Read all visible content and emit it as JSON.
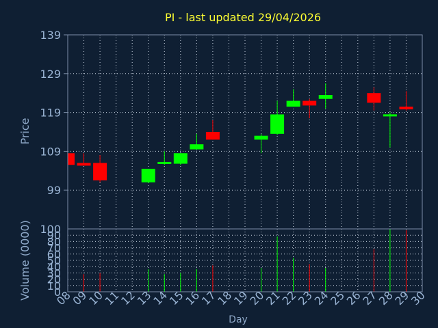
{
  "chart_data": {
    "type": "candlestick",
    "title": "PI - last updated 29/04/2026",
    "ylabel": "Price",
    "volume_ylabel": "Volume (0000)",
    "xlabel": "Day",
    "ylim": [
      89,
      139
    ],
    "price_ticks": [
      99,
      109,
      119,
      129,
      139
    ],
    "volume_ylim": [
      0,
      100
    ],
    "volume_ticks": [
      0,
      10,
      20,
      30,
      40,
      50,
      60,
      70,
      80,
      90,
      100
    ],
    "x_ticks": [
      "08",
      "09",
      "10",
      "11",
      "12",
      "13",
      "14",
      "15",
      "16",
      "17",
      "18",
      "19",
      "20",
      "21",
      "22",
      "23",
      "24",
      "25",
      "26",
      "27",
      "28",
      "29",
      "30"
    ],
    "grid": true,
    "candles": [
      {
        "day": 8,
        "open": 108.5,
        "high": 108.5,
        "low": 104.5,
        "close": 105.5
      },
      {
        "day": 9,
        "open": 106.0,
        "high": 108.5,
        "low": 105.3,
        "close": 105.3
      },
      {
        "day": 10,
        "open": 106.0,
        "high": 108.0,
        "low": 101.0,
        "close": 101.5
      },
      {
        "day": 13,
        "open": 101.0,
        "high": 104.5,
        "low": 100.8,
        "close": 104.5
      },
      {
        "day": 14,
        "open": 105.8,
        "high": 109.0,
        "low": 105.5,
        "close": 106.2
      },
      {
        "day": 15,
        "open": 105.8,
        "high": 108.5,
        "low": 105.5,
        "close": 108.5
      },
      {
        "day": 16,
        "open": 109.5,
        "high": 113.5,
        "low": 109.5,
        "close": 110.8
      },
      {
        "day": 17,
        "open": 114.0,
        "high": 117.0,
        "low": 112.0,
        "close": 112.0
      },
      {
        "day": 20,
        "open": 112.0,
        "high": 113.5,
        "low": 108.5,
        "close": 113.0
      },
      {
        "day": 21,
        "open": 113.5,
        "high": 122.0,
        "low": 113.2,
        "close": 118.5
      },
      {
        "day": 22,
        "open": 120.5,
        "high": 125.0,
        "low": 120.5,
        "close": 122.0
      },
      {
        "day": 23,
        "open": 122.0,
        "high": 122.5,
        "low": 117.5,
        "close": 120.8
      },
      {
        "day": 24,
        "open": 122.5,
        "high": 126.5,
        "low": 120.0,
        "close": 123.5
      },
      {
        "day": 27,
        "open": 124.0,
        "high": 125.5,
        "low": 119.5,
        "close": 121.5
      },
      {
        "day": 28,
        "open": 118.0,
        "high": 119.0,
        "low": 110.0,
        "close": 118.5
      },
      {
        "day": 29,
        "open": 120.5,
        "high": 124.5,
        "low": 119.5,
        "close": 119.8
      }
    ],
    "volume": [
      {
        "day": 9,
        "value": 28,
        "dir": "down"
      },
      {
        "day": 10,
        "value": 30,
        "dir": "down"
      },
      {
        "day": 13,
        "value": 36,
        "dir": "up"
      },
      {
        "day": 14,
        "value": 28,
        "dir": "up"
      },
      {
        "day": 15,
        "value": 30,
        "dir": "up"
      },
      {
        "day": 16,
        "value": 36,
        "dir": "up"
      },
      {
        "day": 17,
        "value": 42,
        "dir": "down"
      },
      {
        "day": 20,
        "value": 38,
        "dir": "up"
      },
      {
        "day": 21,
        "value": 88,
        "dir": "up"
      },
      {
        "day": 22,
        "value": 54,
        "dir": "up"
      },
      {
        "day": 23,
        "value": 44,
        "dir": "down"
      },
      {
        "day": 24,
        "value": 38,
        "dir": "up"
      },
      {
        "day": 27,
        "value": 68,
        "dir": "down"
      },
      {
        "day": 28,
        "value": 100,
        "dir": "up"
      },
      {
        "day": 29,
        "value": 98,
        "dir": "down"
      }
    ],
    "colors": {
      "background": "#0f1f33",
      "title": "#ffff33",
      "axis_label": "#8fa9c9",
      "tick_label": "#9ab4d4",
      "frame": "#7c8ea8",
      "grid": "#c8d2e0",
      "up": "#00ff00",
      "down": "#ff0000"
    }
  }
}
